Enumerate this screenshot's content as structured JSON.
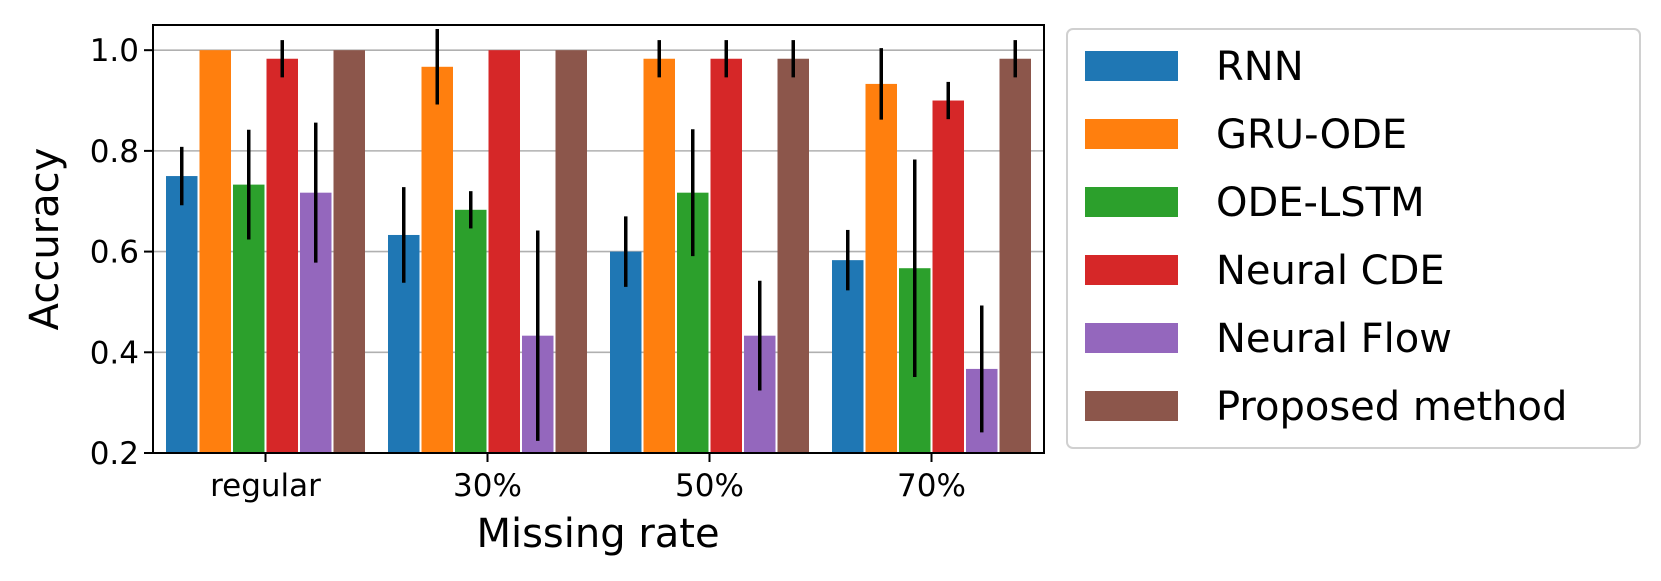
{
  "chart_data": {
    "type": "bar",
    "title": "",
    "xlabel": "Missing rate",
    "ylabel": "Accuracy",
    "categories": [
      "regular",
      "30%",
      "50%",
      "70%"
    ],
    "ylim": [
      0.2,
      1.05
    ],
    "yticks": [
      0.2,
      0.4,
      0.6,
      0.8,
      1.0
    ],
    "ytick_labels": [
      "0.2",
      "0.4",
      "0.6",
      "0.8",
      "1.0"
    ],
    "grid": "horizontal",
    "legend_position": "outside-right",
    "series": [
      {
        "name": "RNN",
        "color": "#1f77b4",
        "values": [
          0.75,
          0.633,
          0.6,
          0.583
        ],
        "errors": [
          0.058,
          0.095,
          0.07,
          0.06
        ]
      },
      {
        "name": "GRU-ODE",
        "color": "#ff7f0e",
        "values": [
          1.0,
          0.967,
          0.983,
          0.933
        ],
        "errors": [
          0.0,
          0.075,
          0.037,
          0.071
        ]
      },
      {
        "name": "ODE-LSTM",
        "color": "#2ca02c",
        "values": [
          0.733,
          0.683,
          0.717,
          0.567
        ],
        "errors": [
          0.109,
          0.037,
          0.126,
          0.216
        ]
      },
      {
        "name": "Neural CDE",
        "color": "#d62728",
        "values": [
          0.983,
          1.0,
          0.983,
          0.9
        ],
        "errors": [
          0.037,
          0.0,
          0.037,
          0.037
        ]
      },
      {
        "name": "Neural Flow",
        "color": "#9467bd",
        "values": [
          0.717,
          0.433,
          0.433,
          0.367
        ],
        "errors": [
          0.139,
          0.209,
          0.109,
          0.126
        ]
      },
      {
        "name": "Proposed method",
        "color": "#8c564b",
        "values": [
          1.0,
          1.0,
          0.983,
          0.983
        ],
        "errors": [
          0.0,
          0.0,
          0.037,
          0.037
        ]
      }
    ]
  }
}
